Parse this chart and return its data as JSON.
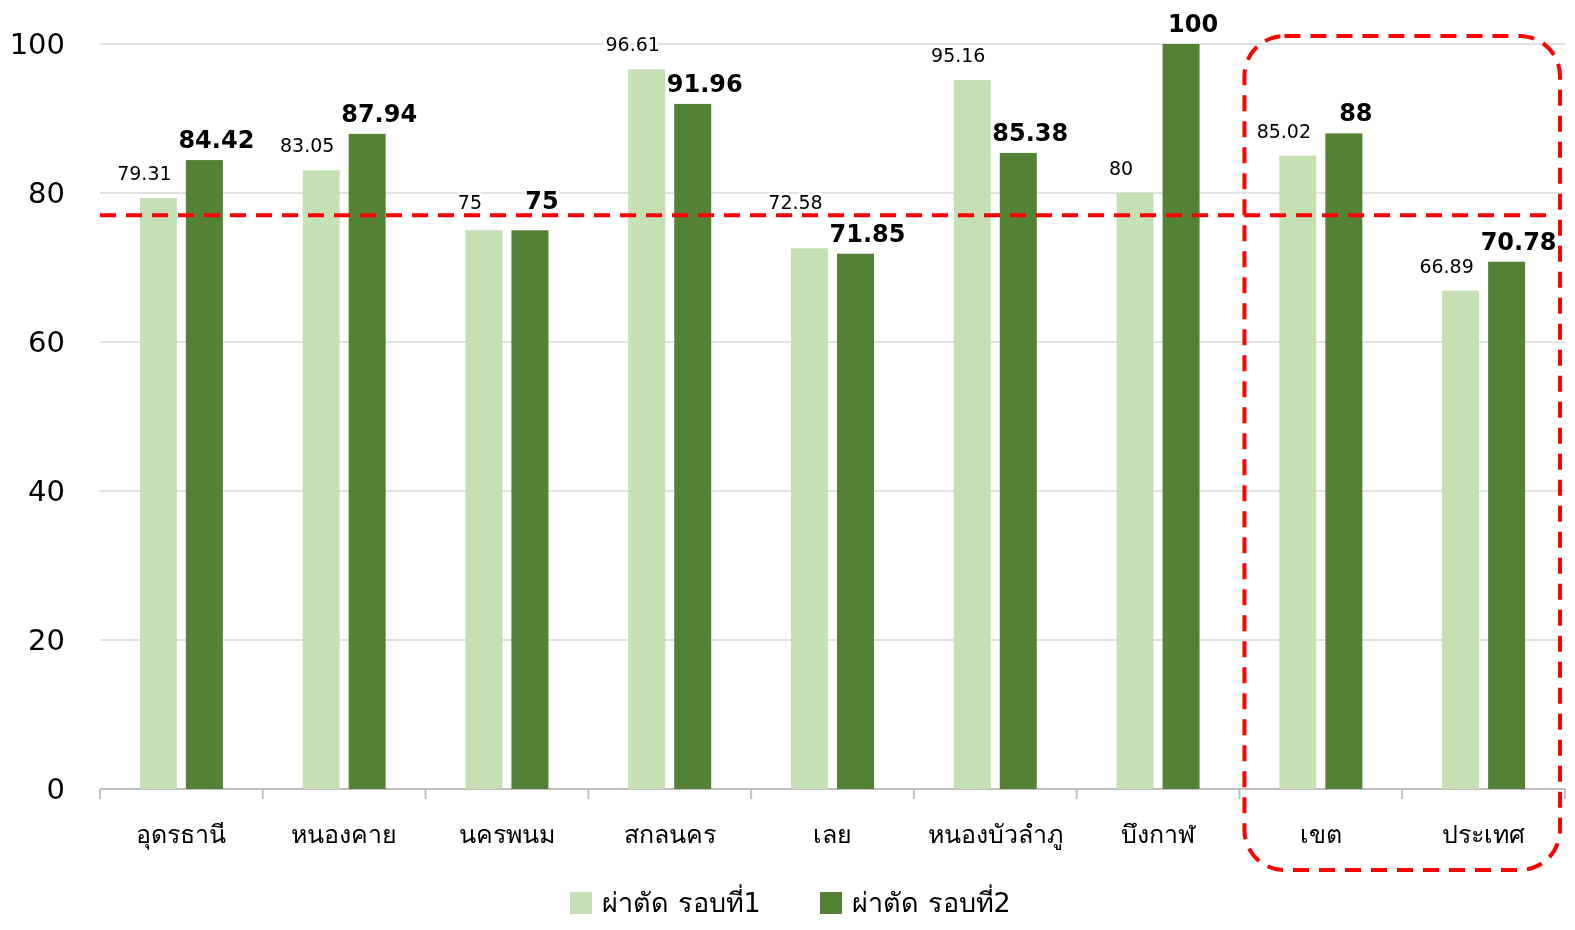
{
  "chart_data": {
    "type": "bar",
    "categories": [
      "อุดรธานี",
      "หนองคาย",
      "นครพนม",
      "สกลนคร",
      "เลย",
      "หนองบัวลำภู",
      "บึงกาฬ",
      "เขต",
      "ประเทศ"
    ],
    "series": [
      {
        "name": "ผ่าตัด รอบที่1",
        "color": "#c5e0b4",
        "values": [
          79.31,
          83.05,
          75,
          96.61,
          72.58,
          95.16,
          80,
          85.02,
          66.89
        ]
      },
      {
        "name": "ผ่าตัด รอบที่2",
        "color": "#548235",
        "values": [
          84.42,
          87.94,
          75,
          91.96,
          71.85,
          85.38,
          100,
          88,
          70.78
        ]
      }
    ],
    "ylim": [
      0,
      100
    ],
    "yticks": [
      0,
      20,
      40,
      60,
      80,
      100
    ],
    "grid": "y",
    "legend": "bottom",
    "data_labels": true,
    "ref_lines": [
      {
        "axis": "y",
        "value": 77,
        "color": "#ff0000",
        "line_style": "dashed"
      }
    ]
  }
}
